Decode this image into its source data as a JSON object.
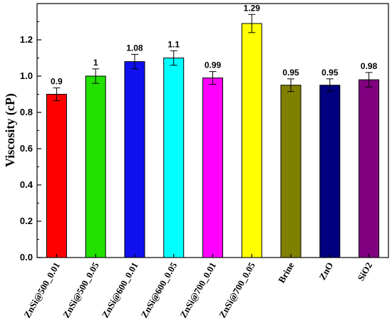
{
  "chart_data": {
    "type": "bar",
    "ylabel": "Viscosity (cP)",
    "xlabel": "",
    "title": "",
    "ylim": [
      0,
      1.4
    ],
    "yticks": [
      "0.0",
      "0.2",
      "0.4",
      "0.6",
      "0.8",
      "1.0",
      "1.2"
    ],
    "grid": false,
    "categories": [
      "ZnSi@500_0.01",
      "ZnSi@500_0.05",
      "ZnSi@600_0.01",
      "ZnSi@600_0.05",
      "ZnSi@700_0.01",
      "ZnSi@700_0.05",
      "Brine",
      "ZnO",
      "SiO2"
    ],
    "values": [
      0.9,
      1.0,
      1.08,
      1.1,
      0.99,
      1.29,
      0.95,
      0.95,
      0.98
    ],
    "value_labels": [
      "0.9",
      "1",
      "1.08",
      "1.1",
      "0.99",
      "1.29",
      "0.95",
      "0.95",
      "0.98"
    ],
    "errors": [
      0.035,
      0.04,
      0.04,
      0.04,
      0.035,
      0.05,
      0.035,
      0.035,
      0.04
    ],
    "colors": [
      "#ff0000",
      "#22e000",
      "#1010ee",
      "#00ffff",
      "#ff00ff",
      "#ffff00",
      "#808000",
      "#000080",
      "#800080"
    ]
  }
}
